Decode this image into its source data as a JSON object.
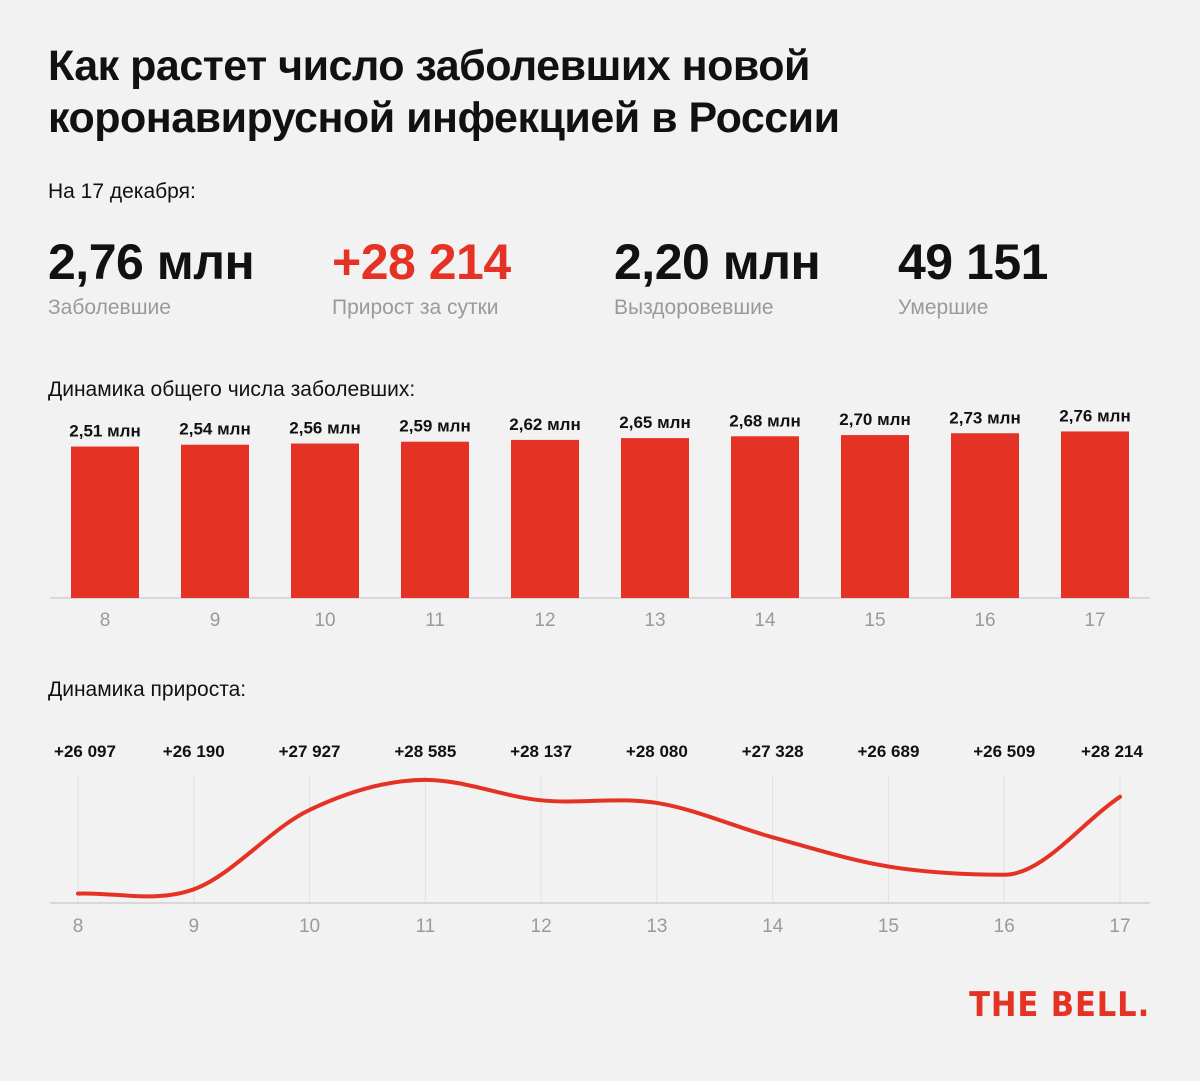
{
  "title": "Как растет число заболевших новой коронавирусной инфекцией в России",
  "date_label": "На 17 декабря:",
  "stats": [
    {
      "value": "2,76 млн",
      "label": "Заболевшие",
      "accent": false
    },
    {
      "value": "+28 214",
      "label": "Прирост за сутки",
      "accent": true
    },
    {
      "value": "2,20 млн",
      "label": "Выздоровевшие",
      "accent": false
    },
    {
      "value": "49 151",
      "label": "Умершие",
      "accent": false
    }
  ],
  "colors": {
    "accent": "#e43325",
    "muted": "#9a9a9a",
    "axis": "#cfcfcf",
    "background": "#f2f2f2"
  },
  "chart_data": [
    {
      "type": "bar",
      "title": "Динамика общего числа заболевших:",
      "categories": [
        "8",
        "9",
        "10",
        "11",
        "12",
        "13",
        "14",
        "15",
        "16",
        "17"
      ],
      "values": [
        2.51,
        2.54,
        2.56,
        2.59,
        2.62,
        2.65,
        2.68,
        2.7,
        2.73,
        2.76
      ],
      "data_labels": [
        "2,51 млн",
        "2,54 млн",
        "2,56 млн",
        "2,59 млн",
        "2,62 млн",
        "2,65 млн",
        "2,68 млн",
        "2,70 млн",
        "2,73 млн",
        "2,76 млн"
      ],
      "ylim": [
        0,
        2.9
      ],
      "grid": false
    },
    {
      "type": "line",
      "title": "Динамика прироста:",
      "categories": [
        "8",
        "9",
        "10",
        "11",
        "12",
        "13",
        "14",
        "15",
        "16",
        "17"
      ],
      "values": [
        26097,
        26190,
        27927,
        28585,
        28137,
        28080,
        27328,
        26689,
        26509,
        28214
      ],
      "data_labels": [
        "+26 097",
        "+26 190",
        "+27 927",
        "+28 585",
        "+28 137",
        "+28 080",
        "+27 328",
        "+26 689",
        "+26 509",
        "+28 214"
      ],
      "ylim": [
        26000,
        28800
      ],
      "grid": true
    }
  ],
  "logo": "THE BELL."
}
